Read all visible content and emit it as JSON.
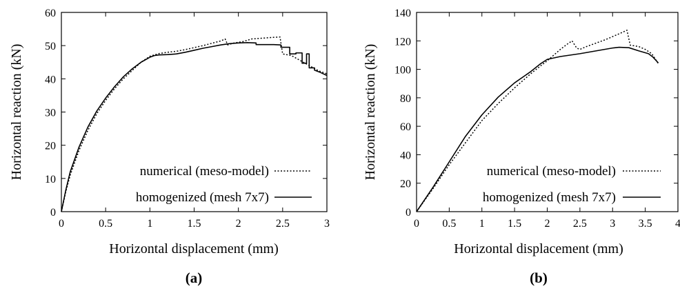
{
  "chart_data": [
    {
      "type": "line",
      "caption": "(a)",
      "xlabel": "Horizontal displacement (mm)",
      "ylabel": "Horizontal reaction (kN)",
      "xlim": [
        0,
        3
      ],
      "ylim": [
        0,
        60
      ],
      "xticks": [
        0,
        0.5,
        1,
        1.5,
        2,
        2.5,
        3
      ],
      "yticks": [
        0,
        10,
        20,
        30,
        40,
        50,
        60
      ],
      "xtick_labels": [
        "0",
        "0.5",
        "1",
        "1.5",
        "2",
        "2.5",
        "3"
      ],
      "ytick_labels": [
        "0",
        "10",
        "20",
        "30",
        "40",
        "50",
        "60"
      ],
      "grid": false,
      "legend_position": "bottom-right",
      "series": [
        {
          "name": "numerical (meso-model)",
          "style": "dotted",
          "color": "#000000",
          "points": [
            [
              0,
              0
            ],
            [
              0.05,
              6
            ],
            [
              0.1,
              11
            ],
            [
              0.2,
              18.5
            ],
            [
              0.3,
              24.5
            ],
            [
              0.4,
              29.5
            ],
            [
              0.5,
              33.5
            ],
            [
              0.6,
              37
            ],
            [
              0.7,
              40
            ],
            [
              0.8,
              42.5
            ],
            [
              0.9,
              45
            ],
            [
              1.0,
              46.8
            ],
            [
              1.1,
              47.6
            ],
            [
              1.2,
              48
            ],
            [
              1.3,
              48.3
            ],
            [
              1.4,
              48.8
            ],
            [
              1.5,
              49.4
            ],
            [
              1.6,
              50
            ],
            [
              1.7,
              50.7
            ],
            [
              1.8,
              51.4
            ],
            [
              1.85,
              52
            ],
            [
              1.88,
              50.2
            ],
            [
              1.95,
              50.8
            ],
            [
              2.05,
              51.2
            ],
            [
              2.15,
              52
            ],
            [
              2.3,
              52.3
            ],
            [
              2.4,
              52.5
            ],
            [
              2.47,
              52.6
            ],
            [
              2.5,
              47.5
            ],
            [
              2.6,
              47
            ],
            [
              2.7,
              45.5
            ],
            [
              2.8,
              44
            ],
            [
              2.9,
              42.5
            ],
            [
              3.0,
              41.5
            ]
          ]
        },
        {
          "name": "homogenized (mesh 7x7)",
          "style": "solid",
          "color": "#000000",
          "points": [
            [
              0,
              0
            ],
            [
              0.05,
              6.5
            ],
            [
              0.1,
              12
            ],
            [
              0.2,
              19.5
            ],
            [
              0.3,
              25.5
            ],
            [
              0.4,
              30.3
            ],
            [
              0.5,
              34.2
            ],
            [
              0.6,
              37.6
            ],
            [
              0.7,
              40.6
            ],
            [
              0.8,
              43
            ],
            [
              0.9,
              45
            ],
            [
              1.0,
              46.5
            ],
            [
              1.05,
              47
            ],
            [
              1.1,
              47.2
            ],
            [
              1.2,
              47.3
            ],
            [
              1.3,
              47.5
            ],
            [
              1.4,
              48
            ],
            [
              1.5,
              48.6
            ],
            [
              1.6,
              49.2
            ],
            [
              1.7,
              49.7
            ],
            [
              1.8,
              50.2
            ],
            [
              1.9,
              50.6
            ],
            [
              2.0,
              50.8
            ],
            [
              2.1,
              50.9
            ],
            [
              2.2,
              50.8
            ],
            [
              2.2,
              50.3
            ],
            [
              2.4,
              50.3
            ],
            [
              2.48,
              50.2
            ],
            [
              2.48,
              49.5
            ],
            [
              2.58,
              49.5
            ],
            [
              2.58,
              47.5
            ],
            [
              2.65,
              47.5
            ],
            [
              2.65,
              47.8
            ],
            [
              2.72,
              47.8
            ],
            [
              2.72,
              44.7
            ],
            [
              2.77,
              44.7
            ],
            [
              2.77,
              47.5
            ],
            [
              2.8,
              47.5
            ],
            [
              2.8,
              43.3
            ],
            [
              2.86,
              43.3
            ],
            [
              2.86,
              42.6
            ],
            [
              2.92,
              42
            ],
            [
              3.0,
              41
            ]
          ]
        }
      ]
    },
    {
      "type": "line",
      "caption": "(b)",
      "xlabel": "Horizontal displacement (mm)",
      "ylabel": "Horizontal reaction (kN)",
      "xlim": [
        0,
        4
      ],
      "ylim": [
        0,
        140
      ],
      "xticks": [
        0,
        0.5,
        1,
        1.5,
        2,
        2.5,
        3,
        3.5,
        4
      ],
      "yticks": [
        0,
        20,
        40,
        60,
        80,
        100,
        120,
        140
      ],
      "xtick_labels": [
        "0",
        "0.5",
        "1",
        "1.5",
        "2",
        "2.5",
        "3",
        "3.5",
        "4"
      ],
      "ytick_labels": [
        "0",
        "20",
        "40",
        "60",
        "80",
        "100",
        "120",
        "140"
      ],
      "grid": false,
      "legend_position": "bottom-right",
      "series": [
        {
          "name": "numerical (meso-model)",
          "style": "dotted",
          "color": "#000000",
          "points": [
            [
              0,
              0
            ],
            [
              0.25,
              16
            ],
            [
              0.5,
              33
            ],
            [
              0.75,
              48.5
            ],
            [
              1.0,
              64
            ],
            [
              1.25,
              76
            ],
            [
              1.5,
              87
            ],
            [
              1.75,
              97
            ],
            [
              1.9,
              102.5
            ],
            [
              2.0,
              106
            ],
            [
              2.1,
              110
            ],
            [
              2.2,
              114
            ],
            [
              2.3,
              117.5
            ],
            [
              2.38,
              120
            ],
            [
              2.45,
              115
            ],
            [
              2.5,
              114
            ],
            [
              2.6,
              116
            ],
            [
              2.75,
              118.5
            ],
            [
              2.9,
              121
            ],
            [
              3.05,
              124
            ],
            [
              3.15,
              126
            ],
            [
              3.22,
              127.5
            ],
            [
              3.27,
              117
            ],
            [
              3.4,
              116
            ],
            [
              3.5,
              114
            ],
            [
              3.6,
              111
            ],
            [
              3.65,
              107.5
            ],
            [
              3.7,
              104
            ]
          ]
        },
        {
          "name": "homogenized (mesh 7x7)",
          "style": "solid",
          "color": "#000000",
          "points": [
            [
              0,
              0
            ],
            [
              0.25,
              17
            ],
            [
              0.5,
              35
            ],
            [
              0.75,
              53
            ],
            [
              1.0,
              68
            ],
            [
              1.25,
              80.5
            ],
            [
              1.5,
              90.5
            ],
            [
              1.75,
              98.5
            ],
            [
              1.9,
              104
            ],
            [
              2.0,
              107
            ],
            [
              2.2,
              109
            ],
            [
              2.5,
              111
            ],
            [
              2.75,
              113
            ],
            [
              3.0,
              115
            ],
            [
              3.1,
              115.5
            ],
            [
              3.25,
              115.2
            ],
            [
              3.4,
              113
            ],
            [
              3.55,
              111
            ],
            [
              3.62,
              108.5
            ],
            [
              3.7,
              104.5
            ]
          ]
        }
      ]
    }
  ]
}
